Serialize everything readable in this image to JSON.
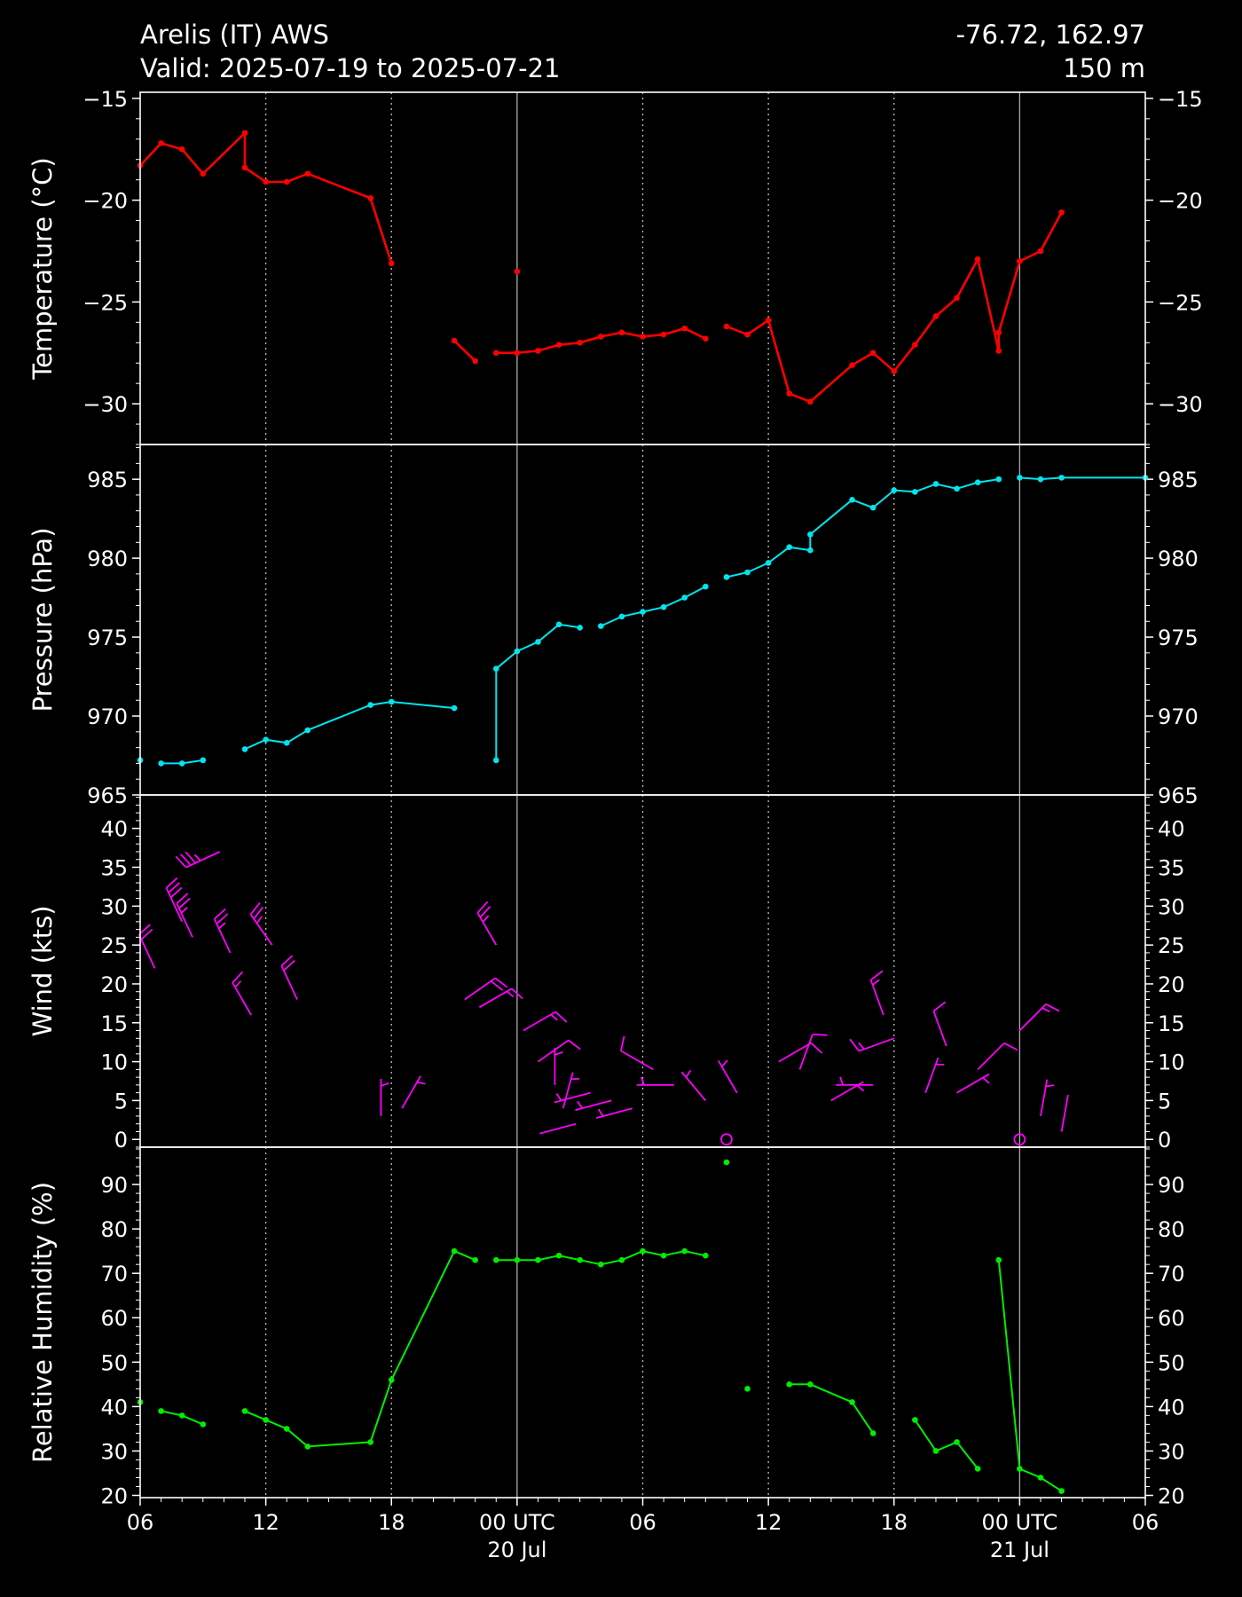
{
  "header": {
    "station": "Arelis (IT) AWS",
    "valid": "Valid: 2025-07-19 to 2025-07-21",
    "coords": "-76.72, 162.97",
    "elevation": "150 m"
  },
  "colors": {
    "background": "#000000",
    "foreground": "#ffffff",
    "temperature": "#ff0000",
    "pressure": "#00e5ee",
    "wind": "#ff00ff",
    "humidity": "#00ee00"
  },
  "chart_data": {
    "type": "line",
    "x_axis": {
      "unit": "hours since 2025-07-19 00 UTC",
      "range": [
        6,
        54
      ],
      "ticks": [
        {
          "x": 6,
          "label": "06",
          "label2": ""
        },
        {
          "x": 12,
          "label": "12",
          "label2": ""
        },
        {
          "x": 18,
          "label": "18",
          "label2": ""
        },
        {
          "x": 24,
          "label": "00 UTC",
          "label2": "20 Jul"
        },
        {
          "x": 30,
          "label": "06",
          "label2": ""
        },
        {
          "x": 36,
          "label": "12",
          "label2": ""
        },
        {
          "x": 42,
          "label": "18",
          "label2": ""
        },
        {
          "x": 48,
          "label": "00 UTC",
          "label2": "21 Jul"
        },
        {
          "x": 54,
          "label": "06",
          "label2": ""
        }
      ],
      "dotted_grid": [
        12,
        18,
        30,
        36,
        42
      ],
      "solid_grid": [
        24,
        48
      ]
    },
    "panels": [
      {
        "key": "temperature",
        "ylabel": "Temperature (°C)",
        "ylim": [
          -32,
          -14.7
        ],
        "yticks": [
          -15,
          -20,
          -25,
          -30
        ],
        "ytick_labels": [
          "−15",
          "−20",
          "−25",
          "−30"
        ],
        "segments": [
          [
            [
              6,
              -18.3
            ],
            [
              7,
              -17.2
            ],
            [
              8,
              -17.5
            ],
            [
              9,
              -18.7
            ],
            [
              11,
              -16.7
            ],
            [
              11,
              -18.4
            ],
            [
              12,
              -19.1
            ],
            [
              13,
              -19.1
            ],
            [
              14,
              -18.7
            ],
            [
              17,
              -19.9
            ],
            [
              18,
              -23.1
            ]
          ],
          [
            [
              24,
              -23.5
            ]
          ],
          [
            [
              21,
              -26.9
            ],
            [
              22,
              -27.9
            ]
          ],
          [
            [
              23,
              -27.5
            ],
            [
              24,
              -27.5
            ],
            [
              25,
              -27.4
            ],
            [
              26,
              -27.1
            ],
            [
              27,
              -27.0
            ],
            [
              28,
              -26.7
            ],
            [
              29,
              -26.5
            ],
            [
              30,
              -26.7
            ],
            [
              31,
              -26.6
            ],
            [
              32,
              -26.3
            ],
            [
              33,
              -26.8
            ]
          ],
          [
            [
              34,
              -26.2
            ],
            [
              35,
              -26.6
            ],
            [
              36,
              -25.9
            ],
            [
              37,
              -29.5
            ],
            [
              38,
              -29.9
            ],
            [
              40,
              -28.1
            ],
            [
              41,
              -27.5
            ],
            [
              42,
              -28.4
            ],
            [
              43,
              -27.1
            ],
            [
              44,
              -25.7
            ],
            [
              45,
              -24.8
            ],
            [
              46,
              -22.9
            ],
            [
              47,
              -27.4
            ],
            [
              47,
              -26.5
            ],
            [
              48,
              -23.0
            ],
            [
              49,
              -22.5
            ],
            [
              50,
              -20.6
            ]
          ]
        ]
      },
      {
        "key": "pressure",
        "ylabel": "Pressure (hPa)",
        "ylim": [
          965,
          987.2
        ],
        "yticks": [
          965,
          970,
          975,
          980,
          985
        ],
        "ytick_labels": [
          "965",
          "970",
          "975",
          "980",
          "985"
        ],
        "segments": [
          [
            [
              6,
              967.2
            ]
          ],
          [
            [
              7,
              967.0
            ],
            [
              8,
              967.0
            ],
            [
              9,
              967.2
            ]
          ],
          [
            [
              11,
              967.9
            ],
            [
              12,
              968.5
            ],
            [
              13,
              968.3
            ],
            [
              14,
              969.1
            ],
            [
              17,
              970.7
            ],
            [
              18,
              970.9
            ],
            [
              21,
              970.5
            ]
          ],
          [
            [
              23,
              967.2
            ],
            [
              23,
              973.0
            ],
            [
              24,
              974.1
            ],
            [
              25,
              974.7
            ],
            [
              26,
              975.8
            ],
            [
              27,
              975.6
            ]
          ],
          [
            [
              28,
              975.7
            ],
            [
              29,
              976.3
            ],
            [
              30,
              976.6
            ],
            [
              31,
              976.9
            ],
            [
              32,
              977.5
            ],
            [
              33,
              978.2
            ]
          ],
          [
            [
              34,
              978.8
            ],
            [
              35,
              979.1
            ],
            [
              36,
              979.7
            ],
            [
              37,
              980.7
            ],
            [
              38,
              980.5
            ],
            [
              38,
              981.5
            ],
            [
              40,
              983.7
            ],
            [
              41,
              983.2
            ],
            [
              42,
              984.3
            ],
            [
              43,
              984.2
            ],
            [
              44,
              984.7
            ],
            [
              45,
              984.4
            ],
            [
              46,
              984.8
            ],
            [
              47,
              985.0
            ]
          ],
          [
            [
              48,
              985.1
            ],
            [
              49,
              985.0
            ],
            [
              50,
              985.1
            ],
            [
              54,
              985.1
            ]
          ]
        ]
      },
      {
        "key": "wind",
        "ylabel": "Wind (kts)",
        "ylim": [
          -1,
          44.3
        ],
        "yticks": [
          0,
          5,
          10,
          15,
          20,
          25,
          30,
          35,
          40
        ],
        "ytick_labels": [
          "0",
          "5",
          "10",
          "15",
          "20",
          "25",
          "30",
          "35",
          "40"
        ],
        "barbs": [
          {
            "x": 6.7,
            "speed": 22,
            "dir": 335
          },
          {
            "x": 8.0,
            "speed": 28,
            "dir": 335
          },
          {
            "x": 8.5,
            "speed": 26,
            "dir": 335
          },
          {
            "x": 9.8,
            "speed": 37,
            "dir": 245
          },
          {
            "x": 10.3,
            "speed": 24,
            "dir": 335
          },
          {
            "x": 11.3,
            "speed": 16,
            "dir": 330
          },
          {
            "x": 12.3,
            "speed": 25,
            "dir": 325
          },
          {
            "x": 13.5,
            "speed": 18,
            "dir": 335
          },
          {
            "x": 17.5,
            "speed": 3,
            "dir": 0
          },
          {
            "x": 18.5,
            "speed": 4,
            "dir": 30
          },
          {
            "x": 21.5,
            "speed": 18,
            "dir": 55
          },
          {
            "x": 22.2,
            "speed": 17,
            "dir": 60
          },
          {
            "x": 23.0,
            "speed": 25,
            "dir": 330
          },
          {
            "x": 24.3,
            "speed": 14,
            "dir": 60
          },
          {
            "x": 25.0,
            "speed": 10,
            "dir": 55
          },
          {
            "x": 25.8,
            "speed": 7,
            "dir": 0
          },
          {
            "x": 26.2,
            "speed": 4,
            "dir": 15
          },
          {
            "x": 26.8,
            "speed": 2,
            "dir": 255
          },
          {
            "x": 27.5,
            "speed": 6,
            "dir": 255
          },
          {
            "x": 28.5,
            "speed": 5,
            "dir": 255
          },
          {
            "x": 29.5,
            "speed": 4,
            "dir": 255
          },
          {
            "x": 30.5,
            "speed": 9,
            "dir": 300
          },
          {
            "x": 31.5,
            "speed": 7,
            "dir": 270
          },
          {
            "x": 33.0,
            "speed": 5,
            "dir": 320
          },
          {
            "x": 34.5,
            "speed": 6,
            "dir": 330
          },
          {
            "x": 36.5,
            "speed": 10,
            "dir": 60
          },
          {
            "x": 37.5,
            "speed": 9,
            "dir": 20
          },
          {
            "x": 39.0,
            "speed": 5,
            "dir": 60
          },
          {
            "x": 41.0,
            "speed": 7,
            "dir": 270
          },
          {
            "x": 41.5,
            "speed": 16,
            "dir": 340
          },
          {
            "x": 42.0,
            "speed": 13,
            "dir": 250
          },
          {
            "x": 43.5,
            "speed": 6,
            "dir": 20
          },
          {
            "x": 44.5,
            "speed": 12,
            "dir": 340
          },
          {
            "x": 45.0,
            "speed": 6,
            "dir": 60
          },
          {
            "x": 46.0,
            "speed": 9,
            "dir": 45
          },
          {
            "x": 48.0,
            "speed": 14,
            "dir": 45
          },
          {
            "x": 49.0,
            "speed": 3,
            "dir": 10
          },
          {
            "x": 50.0,
            "speed": 1,
            "dir": 10
          }
        ],
        "calm": [
          {
            "x": 34,
            "speed": 0
          },
          {
            "x": 48,
            "speed": 0
          }
        ]
      },
      {
        "key": "humidity",
        "ylabel": "Relative Humidity (%)",
        "ylim": [
          19.5,
          98.4
        ],
        "yticks": [
          20,
          30,
          40,
          50,
          60,
          70,
          80,
          90
        ],
        "ytick_labels": [
          "20",
          "30",
          "40",
          "50",
          "60",
          "70",
          "80",
          "90"
        ],
        "segments": [
          [
            [
              6,
              41
            ]
          ],
          [
            [
              7,
              39
            ],
            [
              8,
              38
            ],
            [
              9,
              36
            ]
          ],
          [
            [
              11,
              39
            ],
            [
              12,
              37
            ],
            [
              13,
              35
            ],
            [
              14,
              31
            ],
            [
              17,
              32
            ],
            [
              18,
              46
            ],
            [
              21,
              75
            ],
            [
              22,
              73
            ]
          ],
          [
            [
              23,
              73
            ],
            [
              24,
              73
            ],
            [
              25,
              73
            ],
            [
              26,
              74
            ],
            [
              27,
              73
            ],
            [
              28,
              72
            ],
            [
              29,
              73
            ],
            [
              30,
              75
            ],
            [
              31,
              74
            ],
            [
              32,
              75
            ],
            [
              33,
              74
            ]
          ],
          [
            [
              34,
              95
            ]
          ],
          [
            [
              35,
              44
            ]
          ],
          [
            [
              37,
              45
            ],
            [
              38,
              45
            ],
            [
              40,
              41
            ],
            [
              41,
              34
            ]
          ],
          [
            [
              43,
              37
            ],
            [
              44,
              30
            ],
            [
              45,
              32
            ],
            [
              46,
              26
            ]
          ],
          [
            [
              47,
              73
            ],
            [
              48,
              26
            ],
            [
              49,
              24
            ],
            [
              50,
              21
            ]
          ]
        ]
      }
    ]
  }
}
